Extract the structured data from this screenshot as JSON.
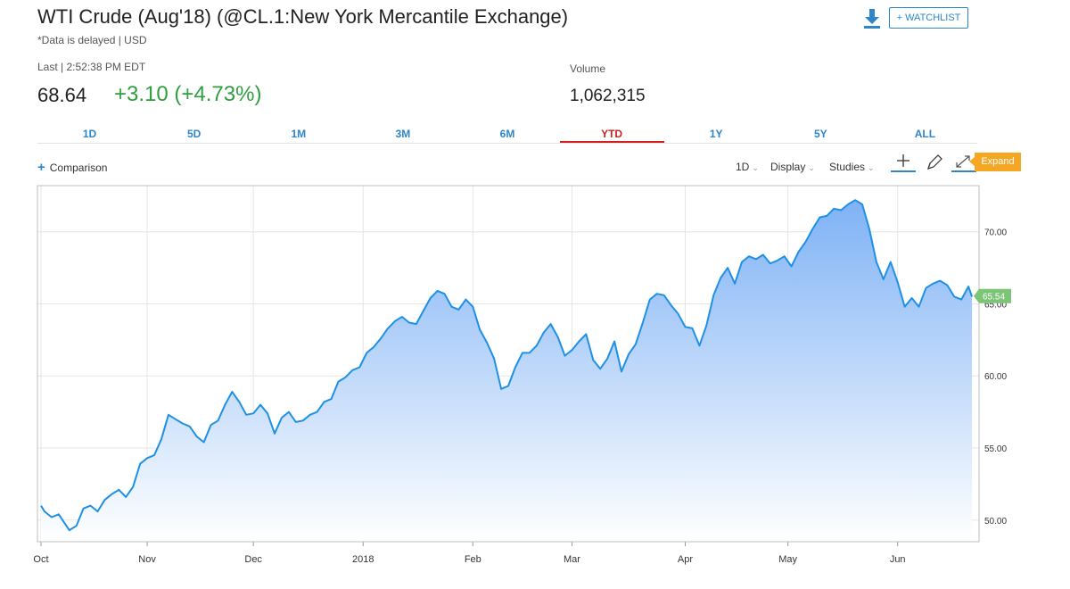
{
  "header": {
    "title": "WTI Crude (Aug'18) (@CL.1:New York Mercantile Exchange)",
    "delayed": "*Data is delayed | USD",
    "watchlist_label": "+ WATCHLIST",
    "download_icon": "download-icon"
  },
  "quote": {
    "last_label": "Last | 2:52:38 PM EDT",
    "last_value": "68.64",
    "change": "+3.10 (+4.73%)",
    "change_color": "#2e9e3e",
    "volume_label": "Volume",
    "volume_value": "1,062,315"
  },
  "tabs": [
    "1D",
    "5D",
    "1M",
    "3M",
    "6M",
    "YTD",
    "1Y",
    "5Y",
    "ALL"
  ],
  "active_tab": "YTD",
  "toolbar": {
    "comparison": "Comparison",
    "interval": "1D",
    "display": "Display",
    "studies": "Studies",
    "expand": "Expand",
    "icons": [
      "crosshair-icon",
      "pencil-icon",
      "expand-arrows-icon"
    ]
  },
  "colors": {
    "accent": "#2e85c8",
    "active_tab": "#d21f1f",
    "line": "#1e90e6",
    "area_top": "#7fb2f5",
    "current_badge": "#7cc576",
    "expand": "#f5a623"
  },
  "chart_data": {
    "type": "area",
    "title": "",
    "xlabel": "",
    "ylabel": "",
    "ylim": [
      48.5,
      73.2
    ],
    "yticks": [
      50,
      55,
      60,
      65,
      70
    ],
    "ytick_labels": [
      "50.00",
      "55.00",
      "60.00",
      "65.00",
      "70.00"
    ],
    "xticks": [
      {
        "label": "Oct",
        "x": "2017-10-02"
      },
      {
        "label": "Nov",
        "x": "2017-11-01"
      },
      {
        "label": "Dec",
        "x": "2017-12-01"
      },
      {
        "label": "2018",
        "x": "2018-01-01"
      },
      {
        "label": "Feb",
        "x": "2018-02-01"
      },
      {
        "label": "Mar",
        "x": "2018-03-01"
      },
      {
        "label": "Apr",
        "x": "2018-04-02"
      },
      {
        "label": "May",
        "x": "2018-05-01"
      },
      {
        "label": "Jun",
        "x": "2018-06-01"
      }
    ],
    "xlim": [
      "2017-10-01",
      "2018-06-24"
    ],
    "current_value_label": "65.54",
    "grid": true,
    "series": [
      {
        "x": [
          "2017-10-02",
          "2017-10-03",
          "2017-10-05",
          "2017-10-07",
          "2017-10-10",
          "2017-10-12",
          "2017-10-14",
          "2017-10-16",
          "2017-10-18",
          "2017-10-20",
          "2017-10-22",
          "2017-10-24",
          "2017-10-26",
          "2017-10-28",
          "2017-10-30",
          "2017-11-01",
          "2017-11-03",
          "2017-11-05",
          "2017-11-07",
          "2017-11-09",
          "2017-11-11",
          "2017-11-13",
          "2017-11-15",
          "2017-11-17",
          "2017-11-19",
          "2017-11-21",
          "2017-11-23",
          "2017-11-25",
          "2017-11-27",
          "2017-11-29",
          "2017-12-01",
          "2017-12-03",
          "2017-12-05",
          "2017-12-07",
          "2017-12-09",
          "2017-12-11",
          "2017-12-13",
          "2017-12-15",
          "2017-12-17",
          "2017-12-19",
          "2017-12-21",
          "2017-12-23",
          "2017-12-25",
          "2017-12-27",
          "2017-12-29",
          "2017-12-31",
          "2018-01-02",
          "2018-01-04",
          "2018-01-06",
          "2018-01-08",
          "2018-01-10",
          "2018-01-12",
          "2018-01-14",
          "2018-01-16",
          "2018-01-18",
          "2018-01-20",
          "2018-01-22",
          "2018-01-24",
          "2018-01-26",
          "2018-01-28",
          "2018-01-30",
          "2018-02-01",
          "2018-02-03",
          "2018-02-05",
          "2018-02-07",
          "2018-02-09",
          "2018-02-11",
          "2018-02-13",
          "2018-02-15",
          "2018-02-17",
          "2018-02-19",
          "2018-02-21",
          "2018-02-23",
          "2018-02-25",
          "2018-02-27",
          "2018-03-01",
          "2018-03-03",
          "2018-03-05",
          "2018-03-07",
          "2018-03-09",
          "2018-03-11",
          "2018-03-13",
          "2018-03-15",
          "2018-03-17",
          "2018-03-19",
          "2018-03-21",
          "2018-03-23",
          "2018-03-25",
          "2018-03-27",
          "2018-03-29",
          "2018-03-31",
          "2018-04-02",
          "2018-04-04",
          "2018-04-06",
          "2018-04-08",
          "2018-04-10",
          "2018-04-12",
          "2018-04-14",
          "2018-04-16",
          "2018-04-18",
          "2018-04-20",
          "2018-04-22",
          "2018-04-24",
          "2018-04-26",
          "2018-04-28",
          "2018-04-30",
          "2018-05-02",
          "2018-05-04",
          "2018-05-06",
          "2018-05-08",
          "2018-05-10",
          "2018-05-12",
          "2018-05-14",
          "2018-05-16",
          "2018-05-18",
          "2018-05-20",
          "2018-05-22",
          "2018-05-24",
          "2018-05-26",
          "2018-05-28",
          "2018-05-30",
          "2018-06-01",
          "2018-06-03",
          "2018-06-05",
          "2018-06-07",
          "2018-06-09",
          "2018-06-11",
          "2018-06-13",
          "2018-06-15",
          "2018-06-17",
          "2018-06-19",
          "2018-06-21",
          "2018-06-22"
        ],
        "values": [
          51.0,
          50.6,
          50.2,
          50.4,
          49.3,
          49.6,
          50.8,
          51.0,
          50.6,
          51.4,
          51.8,
          52.1,
          51.6,
          52.3,
          53.9,
          54.3,
          54.5,
          55.6,
          57.3,
          57.0,
          56.7,
          56.5,
          55.8,
          55.4,
          56.6,
          56.9,
          58.0,
          58.9,
          58.2,
          57.3,
          57.4,
          58.0,
          57.4,
          56.0,
          57.1,
          57.5,
          56.8,
          56.9,
          57.3,
          57.5,
          58.2,
          58.4,
          59.6,
          59.9,
          60.4,
          60.6,
          61.6,
          62.0,
          62.6,
          63.3,
          63.8,
          64.1,
          63.7,
          63.6,
          64.5,
          65.4,
          65.9,
          65.7,
          64.8,
          64.6,
          65.3,
          64.8,
          63.2,
          62.3,
          61.2,
          59.1,
          59.3,
          60.6,
          61.6,
          61.6,
          62.1,
          63.0,
          63.6,
          62.7,
          61.4,
          61.8,
          62.4,
          62.9,
          61.1,
          60.5,
          61.2,
          62.4,
          60.3,
          61.5,
          62.2,
          63.7,
          65.3,
          65.7,
          65.6,
          64.9,
          64.3,
          63.4,
          63.3,
          62.1,
          63.5,
          65.6,
          66.8,
          67.5,
          66.4,
          67.9,
          68.3,
          68.1,
          68.4,
          67.8,
          68.0,
          68.3,
          67.6,
          68.6,
          69.3,
          70.2,
          71.0,
          71.1,
          71.6,
          71.5,
          71.9,
          72.2,
          71.9,
          70.2,
          67.9,
          66.7,
          67.9,
          66.5,
          64.8,
          65.4,
          64.8,
          66.1,
          66.4,
          66.6,
          66.3,
          65.5,
          65.3,
          66.2,
          65.5
        ]
      }
    ]
  }
}
